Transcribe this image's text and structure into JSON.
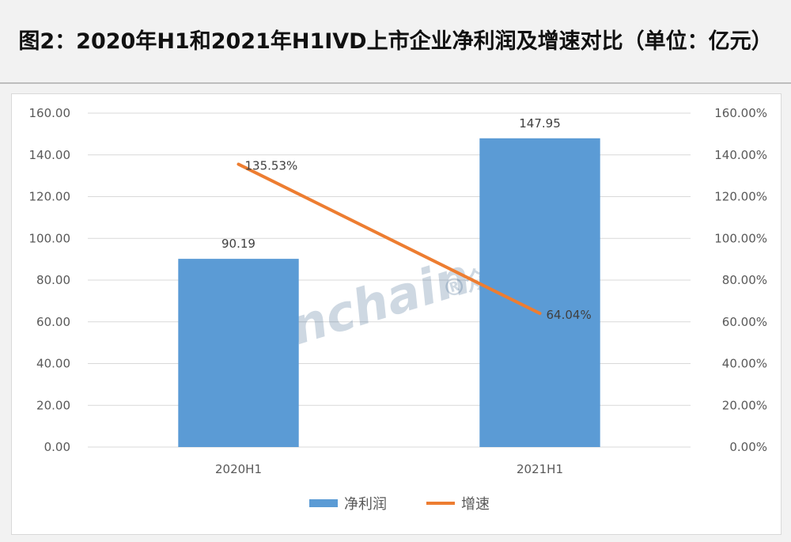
{
  "header": {
    "title": "图2：2020年H1和2021年H1IVD上市企业净利润及增速对比（单位：亿元）"
  },
  "watermark": {
    "text": "Joinchain",
    "suffix": "®众成"
  },
  "chart_data": {
    "type": "bar",
    "categories": [
      "2020H1",
      "2021H1"
    ],
    "series": [
      {
        "name": "净利润",
        "type": "bar",
        "axis": "left",
        "values": [
          90.19,
          147.95
        ],
        "labels": [
          "90.19",
          "147.95"
        ],
        "color": "#5b9bd5"
      },
      {
        "name": "增速",
        "type": "line",
        "axis": "right",
        "values": [
          135.53,
          64.04
        ],
        "labels": [
          "135.53%",
          "64.04%"
        ],
        "color": "#ed7d31"
      }
    ],
    "y_left": {
      "lim": [
        0,
        160
      ],
      "ticks": [
        "0.00",
        "20.00",
        "40.00",
        "60.00",
        "80.00",
        "100.00",
        "120.00",
        "140.00",
        "160.00"
      ]
    },
    "y_right": {
      "lim": [
        0,
        160
      ],
      "ticks": [
        "0.00%",
        "20.00%",
        "40.00%",
        "60.00%",
        "80.00%",
        "100.00%",
        "120.00%",
        "140.00%",
        "160.00%"
      ]
    },
    "grid": true,
    "legend": "bottom"
  }
}
